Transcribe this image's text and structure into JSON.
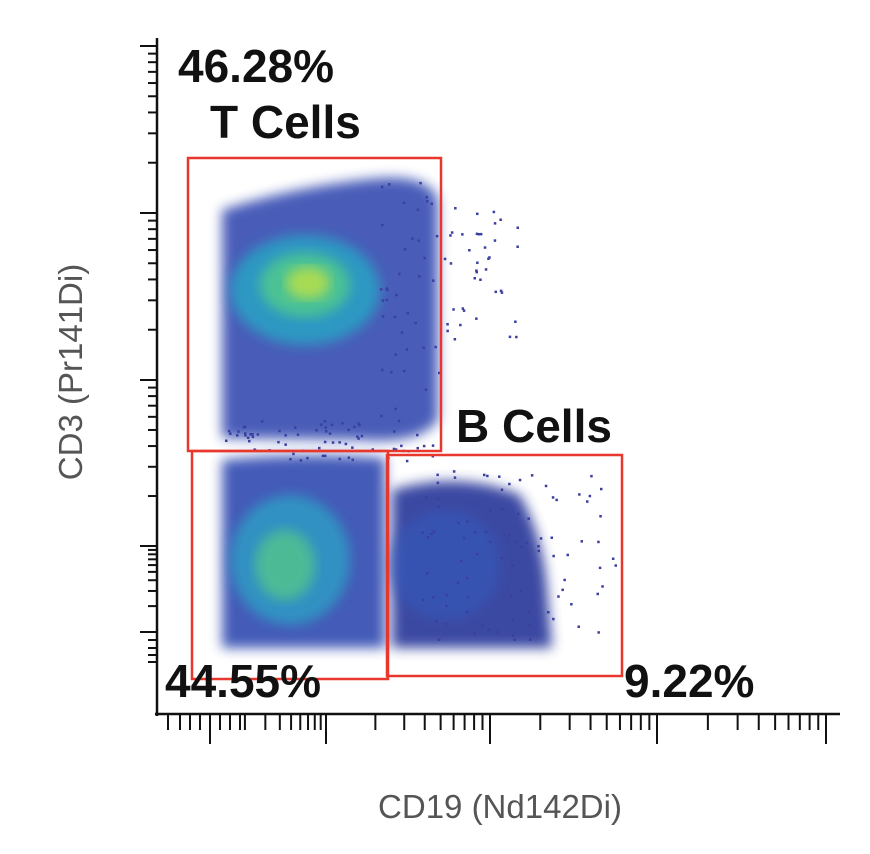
{
  "chart_data": {
    "type": "scatter",
    "subtype": "flow-cytometry-density",
    "xlabel": "CD19 (Nd142Di)",
    "ylabel": "CD3 (Pr141Di)",
    "x_scale": "arcsinh",
    "y_scale": "arcsinh",
    "gates": [
      {
        "name": "T Cells",
        "percent": "46.28%"
      },
      {
        "name": "",
        "percent": "44.55%"
      },
      {
        "name": "B Cells",
        "percent": "9.22%"
      }
    ],
    "gate_color": "#e8372c",
    "density_colormap": [
      "#3a3fa0",
      "#3f6fc8",
      "#2ea7c4",
      "#56c98f",
      "#c8e04a",
      "#f0d22a"
    ],
    "grid": false,
    "legend": "none"
  }
}
